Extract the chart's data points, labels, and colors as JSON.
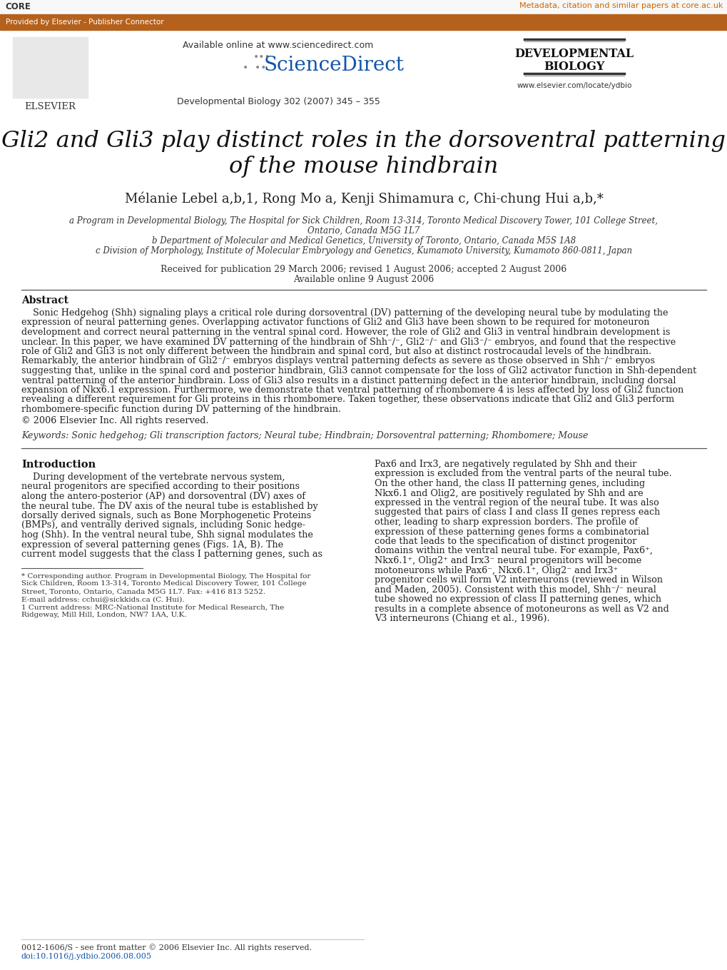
{
  "bg_color": "#ffffff",
  "top_bar_color": "#b5611c",
  "core_text": "CORE",
  "core_link": "Metadata, citation and similar papers at core.ac.uk",
  "core_link_color": "#cc6600",
  "banner_text": "Provided by Elsevier - Publisher Connector",
  "banner_text_color": "#ffffff",
  "available_online": "Available online at www.sciencedirect.com",
  "journal_cite": "Developmental Biology 302 (2007) 345 – 355",
  "journal_url": "www.elsevier.com/locate/ydbio",
  "dev_bio_line1": "DEVELOPMENTAL",
  "dev_bio_line2": "BIOLOGY",
  "title_line1": "Gli2 and Gli3 play distinct roles in the dorsoventral patterning",
  "title_line2": "of the mouse hindbrain",
  "authors_plain": "Mélanie Lebel a,b,1, Rong Mo a, Kenji Shimamura c, Chi-chung Hui a,b,*",
  "affil_a": "a Program in Developmental Biology, The Hospital for Sick Children, Room 13-314, Toronto Medical Discovery Tower, 101 College Street,",
  "affil_a2": "Ontario, Canada M5G 1L7",
  "affil_b": "b Department of Molecular and Medical Genetics, University of Toronto, Ontario, Canada M5S 1A8",
  "affil_c": "c Division of Morphology, Institute of Molecular Embryology and Genetics, Kumamoto University, Kumamoto 860-0811, Japan",
  "received": "Received for publication 29 March 2006; revised 1 August 2006; accepted 2 August 2006",
  "available": "Available online 9 August 2006",
  "abstract_title": "Abstract",
  "copyright": "© 2006 Elsevier Inc. All rights reserved.",
  "keywords": "Keywords: Sonic hedgehog; Gli transcription factors; Neural tube; Hindbrain; Dorsoventral patterning; Rhombomere; Mouse",
  "intro_title": "Introduction",
  "footer_issn": "0012-1606/S - see front matter © 2006 Elsevier Inc. All rights reserved.",
  "footer_doi": "doi:10.1016/j.ydbio.2006.08.005",
  "abstract_lines": [
    "    Sonic Hedgehog (Shh) signaling plays a critical role during dorsoventral (DV) patterning of the developing neural tube by modulating the",
    "expression of neural patterning genes. Overlapping activator functions of Gli2 and Gli3 have been shown to be required for motoneuron",
    "development and correct neural patterning in the ventral spinal cord. However, the role of Gli2 and Gli3 in ventral hindbrain development is",
    "unclear. In this paper, we have examined DV patterning of the hindbrain of Shh⁻/⁻, Gli2⁻/⁻ and Gli3⁻/⁻ embryos, and found that the respective",
    "role of Gli2 and Gli3 is not only different between the hindbrain and spinal cord, but also at distinct rostrocaudal levels of the hindbrain.",
    "Remarkably, the anterior hindbrain of Gli2⁻/⁻ embryos displays ventral patterning defects as severe as those observed in Shh⁻/⁻ embryos",
    "suggesting that, unlike in the spinal cord and posterior hindbrain, Gli3 cannot compensate for the loss of Gli2 activator function in Shh-dependent",
    "ventral patterning of the anterior hindbrain. Loss of Gli3 also results in a distinct patterning defect in the anterior hindbrain, including dorsal",
    "expansion of Nkx6.1 expression. Furthermore, we demonstrate that ventral patterning of rhombomere 4 is less affected by loss of Gli2 function",
    "revealing a different requirement for Gli proteins in this rhombomere. Taken together, these observations indicate that Gli2 and Gli3 perform",
    "rhombomere-specific function during DV patterning of the hindbrain."
  ],
  "intro_left_lines": [
    "    During development of the vertebrate nervous system,",
    "neural progenitors are specified according to their positions",
    "along the antero-posterior (AP) and dorsoventral (DV) axes of",
    "the neural tube. The DV axis of the neural tube is established by",
    "dorsally derived signals, such as Bone Morphogenetic Proteins",
    "(BMPs), and ventrally derived signals, including Sonic hedge-",
    "hog (Shh). In the ventral neural tube, Shh signal modulates the",
    "expression of several patterning genes (Figs. 1A, B). The",
    "current model suggests that the class I patterning genes, such as"
  ],
  "footnote_lines": [
    "* Corresponding author. Program in Developmental Biology, The Hospital for",
    "Sick Children, Room 13-314, Toronto Medical Discovery Tower, 101 College",
    "Street, Toronto, Ontario, Canada M5G 1L7. Fax: +416 813 5252.",
    "E-mail address: cchui@sickkids.ca (C. Hui).",
    "1 Current address: MRC-National Institute for Medical Research, The",
    "Ridgeway, Mill Hill, London, NW7 1AA, U.K."
  ],
  "intro_right_lines": [
    "Pax6 and Irx3, are negatively regulated by Shh and their",
    "expression is excluded from the ventral parts of the neural tube.",
    "On the other hand, the class II patterning genes, including",
    "Nkx6.1 and Olig2, are positively regulated by Shh and are",
    "expressed in the ventral region of the neural tube. It was also",
    "suggested that pairs of class I and class II genes repress each",
    "other, leading to sharp expression borders. The profile of",
    "expression of these patterning genes forms a combinatorial",
    "code that leads to the specification of distinct progenitor",
    "domains within the ventral neural tube. For example, Pax6⁺,",
    "Nkx6.1⁺, Olig2⁺ and Irx3⁻ neural progenitors will become",
    "motoneurons while Pax6⁻, Nkx6.1⁺, Olig2⁻ and Irx3⁺",
    "progenitor cells will form V2 interneurons (reviewed in Wilson",
    "and Maden, 2005). Consistent with this model, Shh⁻/⁻ neural",
    "tube showed no expression of class II patterning genes, which",
    "results in a complete absence of motoneurons as well as V2 and",
    "V3 interneurons (Chiang et al., 1996)."
  ]
}
